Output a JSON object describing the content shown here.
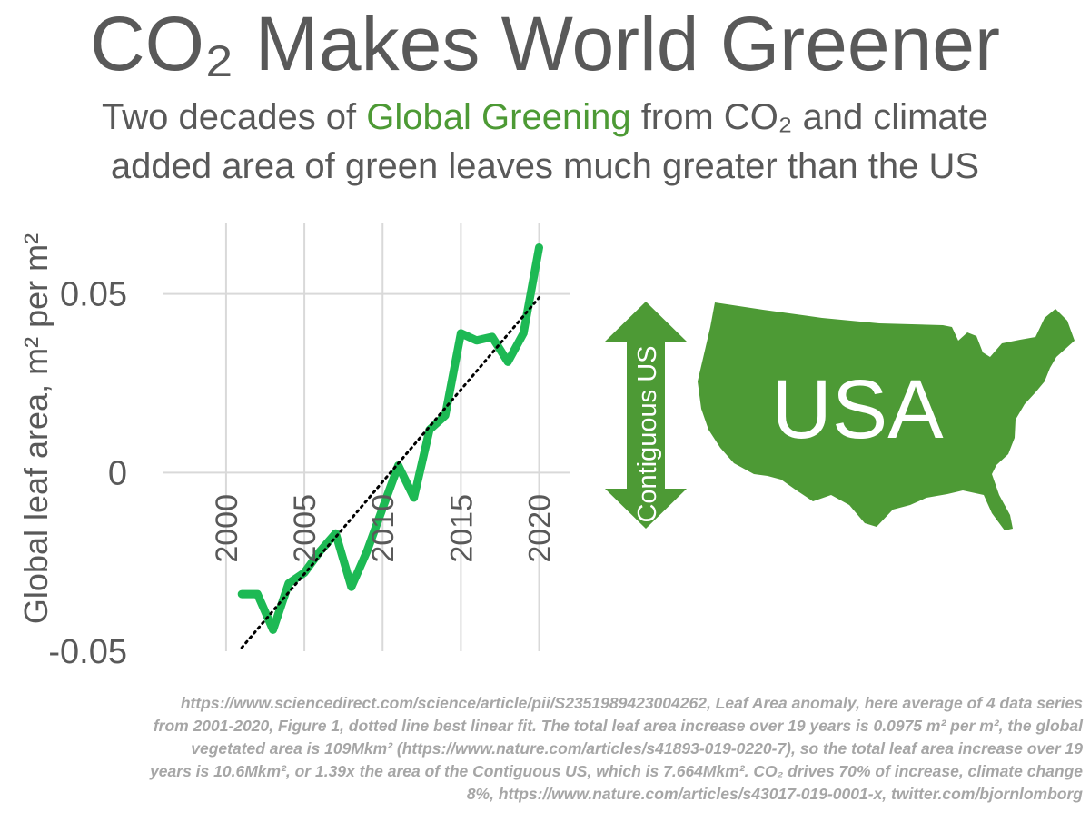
{
  "header": {
    "title": "CO₂ Makes World Greener",
    "subtitle_line1_before": "Two decades of ",
    "subtitle_highlight": "Global Greening",
    "subtitle_line1_after": " from CO₂ and climate",
    "subtitle_line2": "added area of green leaves much greater than the US"
  },
  "colors": {
    "text": "#595959",
    "green_line": "#1db954",
    "map_green": "#4d9a35",
    "grid": "#d9d9d9",
    "footnote": "#a6a6a6"
  },
  "chart_data": {
    "type": "line",
    "ylabel": "Global leaf area, m² per m²",
    "xlim": [
      1996,
      2022
    ],
    "ylim": [
      -0.05,
      0.07
    ],
    "x_ticks": [
      "2000",
      "2005",
      "2010",
      "2015",
      "2020"
    ],
    "x_tick_values": [
      2000,
      2005,
      2010,
      2015,
      2020
    ],
    "y_ticks": [
      "0.05",
      "0",
      "-0.05"
    ],
    "y_tick_values": [
      0.05,
      0,
      -0.05
    ],
    "series": [
      {
        "name": "Leaf Area anomaly",
        "x": [
          2001,
          2002,
          2003,
          2004,
          2005,
          2006,
          2007,
          2008,
          2009,
          2010,
          2011,
          2012,
          2013,
          2014,
          2015,
          2016,
          2017,
          2018,
          2019,
          2020
        ],
        "values": [
          -0.034,
          -0.034,
          -0.044,
          -0.031,
          -0.028,
          -0.022,
          -0.017,
          -0.032,
          -0.022,
          -0.01,
          0.002,
          -0.007,
          0.012,
          0.016,
          0.039,
          0.037,
          0.038,
          0.031,
          0.039,
          0.063
        ]
      },
      {
        "name": "best linear fit",
        "x": [
          2001,
          2020
        ],
        "values": [
          -0.049,
          0.049
        ]
      }
    ]
  },
  "graphic": {
    "arrow_label": "Contiguous US",
    "map_label": "USA"
  },
  "footnote": {
    "line1": "https://www.sciencedirect.com/science/article/pii/S2351989423004262, Leaf Area anomaly, here average of 4 data series",
    "line2": "from 2001-2020, Figure 1, dotted line best linear fit. The total leaf area increase over 19 years is 0.0975 m² per m², the global",
    "line3": "vegetated area is 109Mkm² (https://www.nature.com/articles/s41893-019-0220-7), so the total leaf area increase over 19",
    "line4": "years is 10.6Mkm², or 1.39x the area of the Contiguous US, which is 7.664Mkm². CO₂ drives 70% of increase, climate change",
    "line5": "8%, https://www.nature.com/articles/s43017-019-0001-x, twitter.com/bjornlomborg"
  }
}
